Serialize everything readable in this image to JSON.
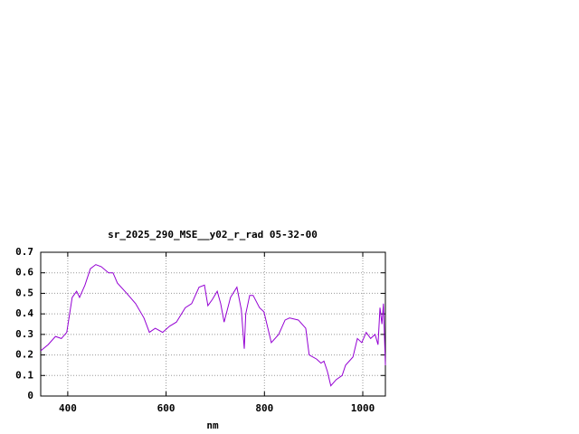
{
  "chart_data": {
    "type": "line",
    "title": "sr_2025_290_MSE__y02_r_rad 05-32-00",
    "x_label": "nm",
    "x": [
      345,
      360,
      375,
      387,
      398,
      409,
      418,
      424,
      435,
      446,
      457,
      468,
      483,
      492,
      501,
      520,
      538,
      555,
      566,
      578,
      593,
      607,
      621,
      639,
      652,
      667,
      678,
      685,
      694,
      704,
      711,
      718,
      731,
      744,
      753,
      759,
      762,
      770,
      777,
      790,
      799,
      814,
      829,
      842,
      851,
      869,
      884,
      891,
      906,
      915,
      921,
      928,
      935,
      946,
      958,
      965,
      980,
      989,
      998,
      1007,
      1016,
      1025,
      1031,
      1035,
      1039,
      1042,
      1046
    ],
    "series": [
      {
        "name": "sr_2025_290_MSE__y02_r_rad",
        "color": "#9400d3",
        "values": [
          0.22,
          0.25,
          0.29,
          0.28,
          0.31,
          0.48,
          0.51,
          0.48,
          0.54,
          0.62,
          0.64,
          0.63,
          0.6,
          0.6,
          0.55,
          0.5,
          0.45,
          0.38,
          0.31,
          0.33,
          0.31,
          0.34,
          0.36,
          0.43,
          0.45,
          0.53,
          0.54,
          0.44,
          0.47,
          0.51,
          0.45,
          0.36,
          0.48,
          0.53,
          0.42,
          0.23,
          0.4,
          0.49,
          0.49,
          0.43,
          0.41,
          0.26,
          0.3,
          0.37,
          0.38,
          0.37,
          0.33,
          0.2,
          0.18,
          0.16,
          0.17,
          0.12,
          0.05,
          0.08,
          0.1,
          0.15,
          0.19,
          0.28,
          0.26,
          0.31,
          0.28,
          0.3,
          0.25,
          0.43,
          0.35,
          0.45,
          0.15
        ]
      }
    ],
    "xlim": [
      345,
      1046
    ],
    "xticks": [
      400,
      600,
      800,
      1000
    ],
    "ylim": [
      0,
      0.7
    ],
    "yticks": [
      0,
      0.1,
      0.2,
      0.3,
      0.4,
      0.5,
      0.6,
      0.7
    ],
    "grid": true
  }
}
